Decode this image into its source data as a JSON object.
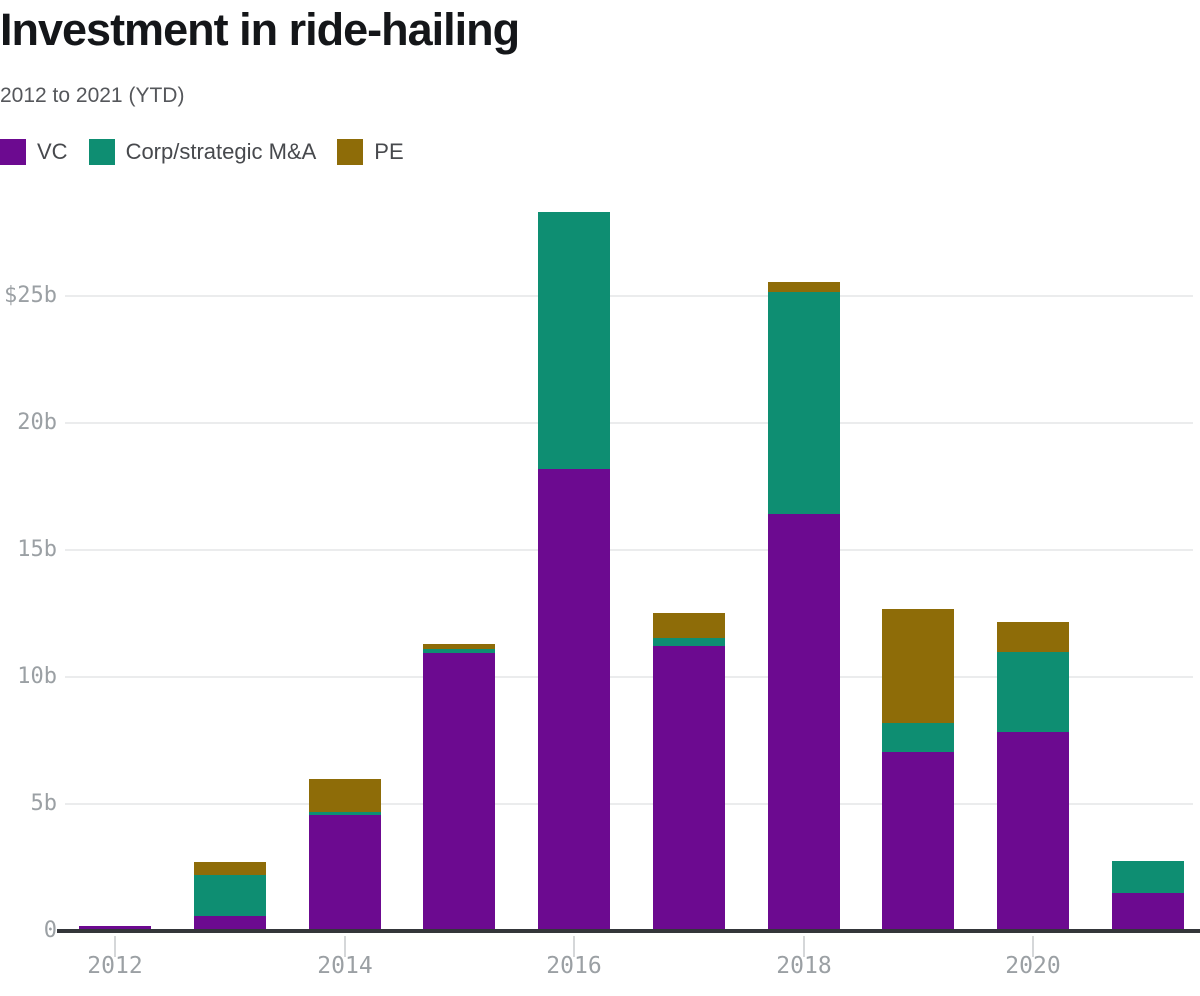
{
  "header": {
    "title": "Investment in ride-hailing",
    "subtitle": "2012 to 2021 (YTD)"
  },
  "chart_data": {
    "type": "bar",
    "stacked": true,
    "title": "Investment in ride-hailing",
    "subtitle": "2012 to 2021 (YTD)",
    "unit": "USD billions",
    "categories": [
      2012,
      2013,
      2014,
      2015,
      2016,
      2017,
      2018,
      2019,
      2020,
      2021
    ],
    "series": [
      {
        "name": "VC",
        "color": "#6c0a90",
        "values": [
          0.1,
          0.5,
          4.5,
          10.85,
          18.1,
          11.15,
          16.35,
          6.95,
          7.75,
          1.4
        ]
      },
      {
        "name": "Corp/strategic M&A",
        "color": "#0e8e72",
        "values": [
          0,
          1.6,
          0.1,
          0.15,
          10.1,
          0.3,
          8.75,
          1.15,
          3.15,
          1.25
        ]
      },
      {
        "name": "PE",
        "color": "#8e6c08",
        "values": [
          0,
          0.5,
          1.3,
          0.2,
          0,
          1.0,
          0.4,
          4.5,
          1.2,
          0
        ]
      }
    ],
    "totals_approx": [
      0.1,
      2.6,
      5.9,
      11.2,
      28.2,
      12.45,
      25.5,
      12.6,
      12.1,
      2.65
    ],
    "y_ticks": [
      {
        "label": "$25b",
        "value": 25
      },
      {
        "label": "20b",
        "value": 20
      },
      {
        "label": "15b",
        "value": 15
      },
      {
        "label": "10b",
        "value": 10
      },
      {
        "label": "5b",
        "value": 5
      },
      {
        "label": "0",
        "value": 0
      }
    ],
    "x_tick_labels": [
      "2012",
      "2014",
      "2016",
      "2018",
      "2020"
    ],
    "x_tick_years": [
      2012,
      2014,
      2016,
      2018,
      2020
    ],
    "ylim": [
      0,
      28.5
    ],
    "grid": "horizontal",
    "legend_position": "top-left"
  }
}
